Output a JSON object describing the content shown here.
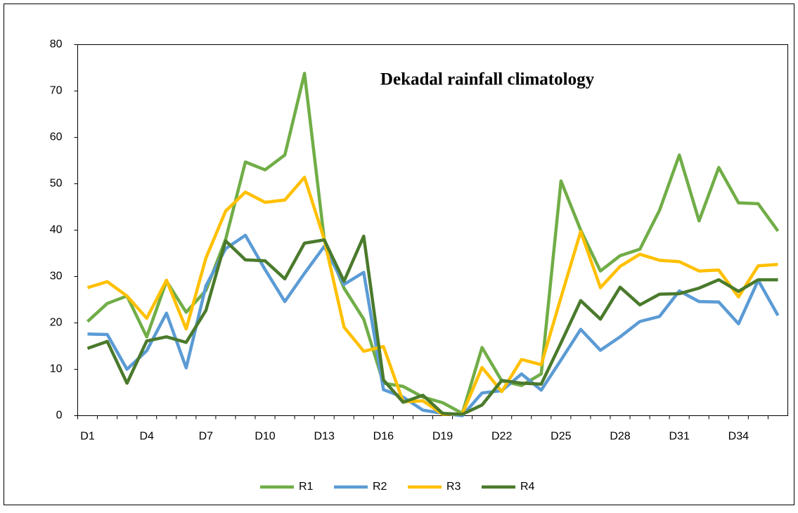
{
  "chart_data": {
    "type": "line",
    "title": "Dekadal rainfall climatology",
    "categories": [
      "D1",
      null,
      null,
      "D4",
      null,
      null,
      "D7",
      null,
      null,
      "D10",
      null,
      null,
      "D13",
      null,
      null,
      "D16",
      null,
      null,
      "D19",
      null,
      null,
      "D22",
      null,
      null,
      "D25",
      null,
      null,
      "D28",
      null,
      null,
      "D31",
      null,
      null,
      "D34",
      null,
      null
    ],
    "series": [
      {
        "name": "R1",
        "color": "#70ad47",
        "values": [
          20.3,
          24.2,
          25.8,
          17,
          29,
          22.3,
          27,
          38,
          54.7,
          53,
          56.2,
          73.8,
          38,
          27.5,
          20.8,
          7,
          6.3,
          4,
          2.8,
          0.5,
          14.7,
          7.5,
          6.5,
          9,
          50.6,
          40,
          31.2,
          34.5,
          35.9,
          44.3,
          56.2,
          42,
          53.5,
          45.9,
          45.7,
          39.8
        ]
      },
      {
        "name": "R2",
        "color": "#5b9bd5",
        "values": [
          17.6,
          17.5,
          10,
          14,
          22.1,
          10.3,
          28,
          36,
          38.9,
          31.5,
          24.6,
          30.7,
          36.5,
          28.3,
          30.9,
          5.6,
          4,
          1.2,
          0.5,
          0,
          4.9,
          5.4,
          9,
          5.5,
          12,
          18.6,
          14.1,
          17,
          20.3,
          21.4,
          26.9,
          24.6,
          24.5,
          19.8,
          29.2,
          21.6
        ]
      },
      {
        "name": "R3",
        "color": "#ffc000",
        "values": [
          27.6,
          28.9,
          25.8,
          21,
          29.2,
          18.7,
          34,
          44.1,
          48.2,
          46,
          46.5,
          51.4,
          38,
          19.1,
          13.9,
          14.9,
          3,
          3.2,
          0.3,
          0.4,
          10.4,
          5.2,
          12.1,
          11,
          25.5,
          39.7,
          27.6,
          32.2,
          34.8,
          33.5,
          33.2,
          31.2,
          31.4,
          25.6,
          32.3,
          32.6
        ]
      },
      {
        "name": "R4",
        "color": "#4a7a2c",
        "values": [
          14.5,
          16,
          7,
          16.1,
          17,
          15.8,
          22.7,
          37.7,
          33.6,
          33.4,
          29.5,
          37.2,
          37.9,
          29,
          38.7,
          7.7,
          2.9,
          4.4,
          0.5,
          0.3,
          2.3,
          7.6,
          7,
          6.8,
          15.7,
          24.8,
          20.8,
          27.7,
          23.9,
          26.2,
          26.3,
          27.5,
          29.3,
          26.8,
          29.3,
          29.3
        ]
      }
    ],
    "ylim": [
      0,
      80
    ],
    "yticks": [
      0,
      10,
      20,
      30,
      40,
      50,
      60,
      70,
      80
    ],
    "legend": "bottom"
  }
}
